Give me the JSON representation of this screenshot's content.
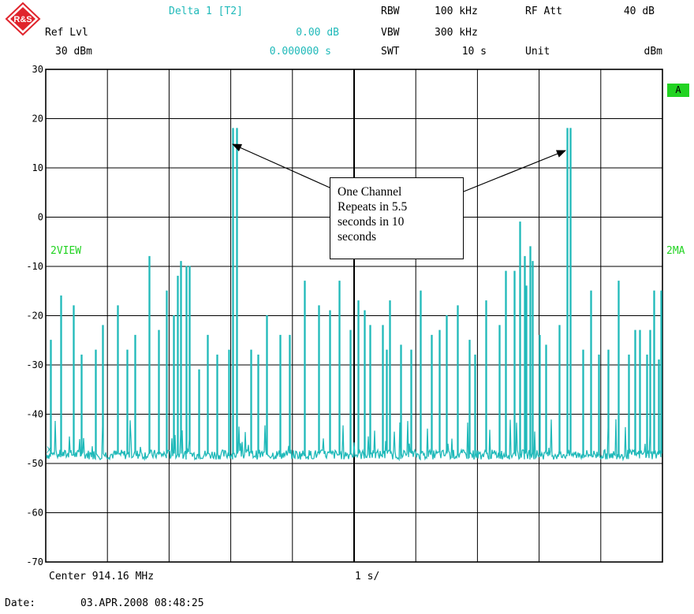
{
  "header": {
    "logo_text": "R&S",
    "marker_label": "Delta 1 [T2]",
    "ref_lvl_label": "Ref Lvl",
    "ref_lvl_value": "30 dBm",
    "marker_level": "0.00 dB",
    "marker_time": "0.000000 s",
    "rbw_label": "RBW",
    "rbw_value": "100 kHz",
    "vbw_label": "VBW",
    "vbw_value": "300 kHz",
    "swt_label": "SWT",
    "swt_value": "10 s",
    "rfatt_label": "RF Att",
    "rfatt_value": "40 dB",
    "unit_label": "Unit",
    "unit_value": "dBm"
  },
  "side": {
    "trace_a_badge": "A",
    "left_view": "2VIEW",
    "right_view": "2MA"
  },
  "footer": {
    "center_label": "Center 914.16 MHz",
    "per_div": "1 s/",
    "date_label": "Date:",
    "date_value": "03.APR.2008  08:48:25"
  },
  "callout_text": "One Channel\nRepeats in 5.5\nseconds in 10\nseconds",
  "colors": {
    "trace": "#1fb9b9",
    "grid": "#000000",
    "badge": "#22d322"
  },
  "chart_data": {
    "type": "line",
    "title": "",
    "xlabel": "Center 914.16 MHz",
    "ylabel": "",
    "xlim": [
      0,
      10
    ],
    "ylim": [
      -70,
      30
    ],
    "yticks": [
      "30",
      "20",
      "10",
      "0",
      "-10",
      "-20",
      "-30",
      "-40",
      "-50",
      "-60",
      "-70"
    ],
    "grid": true,
    "noise_floor_dbm": -48,
    "series": [
      {
        "peaks": [
          [
            0.08,
            -25
          ],
          [
            0.24,
            -16
          ],
          [
            0.45,
            -18
          ],
          [
            0.58,
            -28
          ],
          [
            0.8,
            -27
          ],
          [
            0.92,
            -22
          ],
          [
            1.16,
            -18
          ],
          [
            1.32,
            -27
          ],
          [
            1.45,
            -24
          ],
          [
            1.67,
            -8
          ],
          [
            1.83,
            -23
          ],
          [
            1.96,
            -15
          ],
          [
            2.07,
            -20
          ],
          [
            2.13,
            -12
          ],
          [
            2.19,
            -9
          ],
          [
            2.27,
            -10
          ],
          [
            2.33,
            -10
          ],
          [
            2.48,
            -31
          ],
          [
            2.62,
            -24
          ],
          [
            2.78,
            -28
          ],
          [
            2.97,
            -27
          ],
          [
            3.03,
            18
          ],
          [
            3.09,
            18
          ],
          [
            3.32,
            -27
          ],
          [
            3.44,
            -28
          ],
          [
            3.58,
            -20
          ],
          [
            3.8,
            -24
          ],
          [
            3.95,
            -24
          ],
          [
            4.2,
            -13
          ],
          [
            4.42,
            -18
          ],
          [
            4.6,
            -19
          ],
          [
            4.76,
            -13
          ],
          [
            4.93,
            -23
          ],
          [
            5.07,
            -17
          ],
          [
            5.16,
            -19
          ],
          [
            5.26,
            -22
          ],
          [
            5.46,
            -22
          ],
          [
            5.53,
            -27
          ],
          [
            5.58,
            -17
          ],
          [
            5.75,
            -26
          ],
          [
            5.92,
            -27
          ],
          [
            6.07,
            -15
          ],
          [
            6.25,
            -24
          ],
          [
            6.38,
            -23
          ],
          [
            6.49,
            -20
          ],
          [
            6.67,
            -18
          ],
          [
            6.87,
            -25
          ],
          [
            6.96,
            -28
          ],
          [
            7.13,
            -17
          ],
          [
            7.35,
            -22
          ],
          [
            7.45,
            -11
          ],
          [
            7.59,
            -11
          ],
          [
            7.68,
            -1
          ],
          [
            7.76,
            -8
          ],
          [
            7.79,
            -14
          ],
          [
            7.85,
            -6
          ],
          [
            7.89,
            -9
          ],
          [
            8.01,
            -24
          ],
          [
            8.11,
            -26
          ],
          [
            8.32,
            -22
          ],
          [
            8.45,
            18
          ],
          [
            8.51,
            18
          ],
          [
            8.71,
            -27
          ],
          [
            8.84,
            -15
          ],
          [
            8.97,
            -28
          ],
          [
            9.12,
            -27
          ],
          [
            9.28,
            -13
          ],
          [
            9.45,
            -28
          ],
          [
            9.55,
            -23
          ],
          [
            9.63,
            -23
          ],
          [
            9.74,
            -28
          ],
          [
            9.79,
            -23
          ],
          [
            9.86,
            -15
          ],
          [
            9.93,
            -29
          ],
          [
            9.98,
            -15
          ]
        ]
      }
    ],
    "annotations": [
      {
        "text": "One Channel Repeats in 5.5 seconds in 10 seconds",
        "points_to": [
          [
            3.03,
            18
          ],
          [
            8.5,
            18
          ]
        ]
      }
    ]
  }
}
